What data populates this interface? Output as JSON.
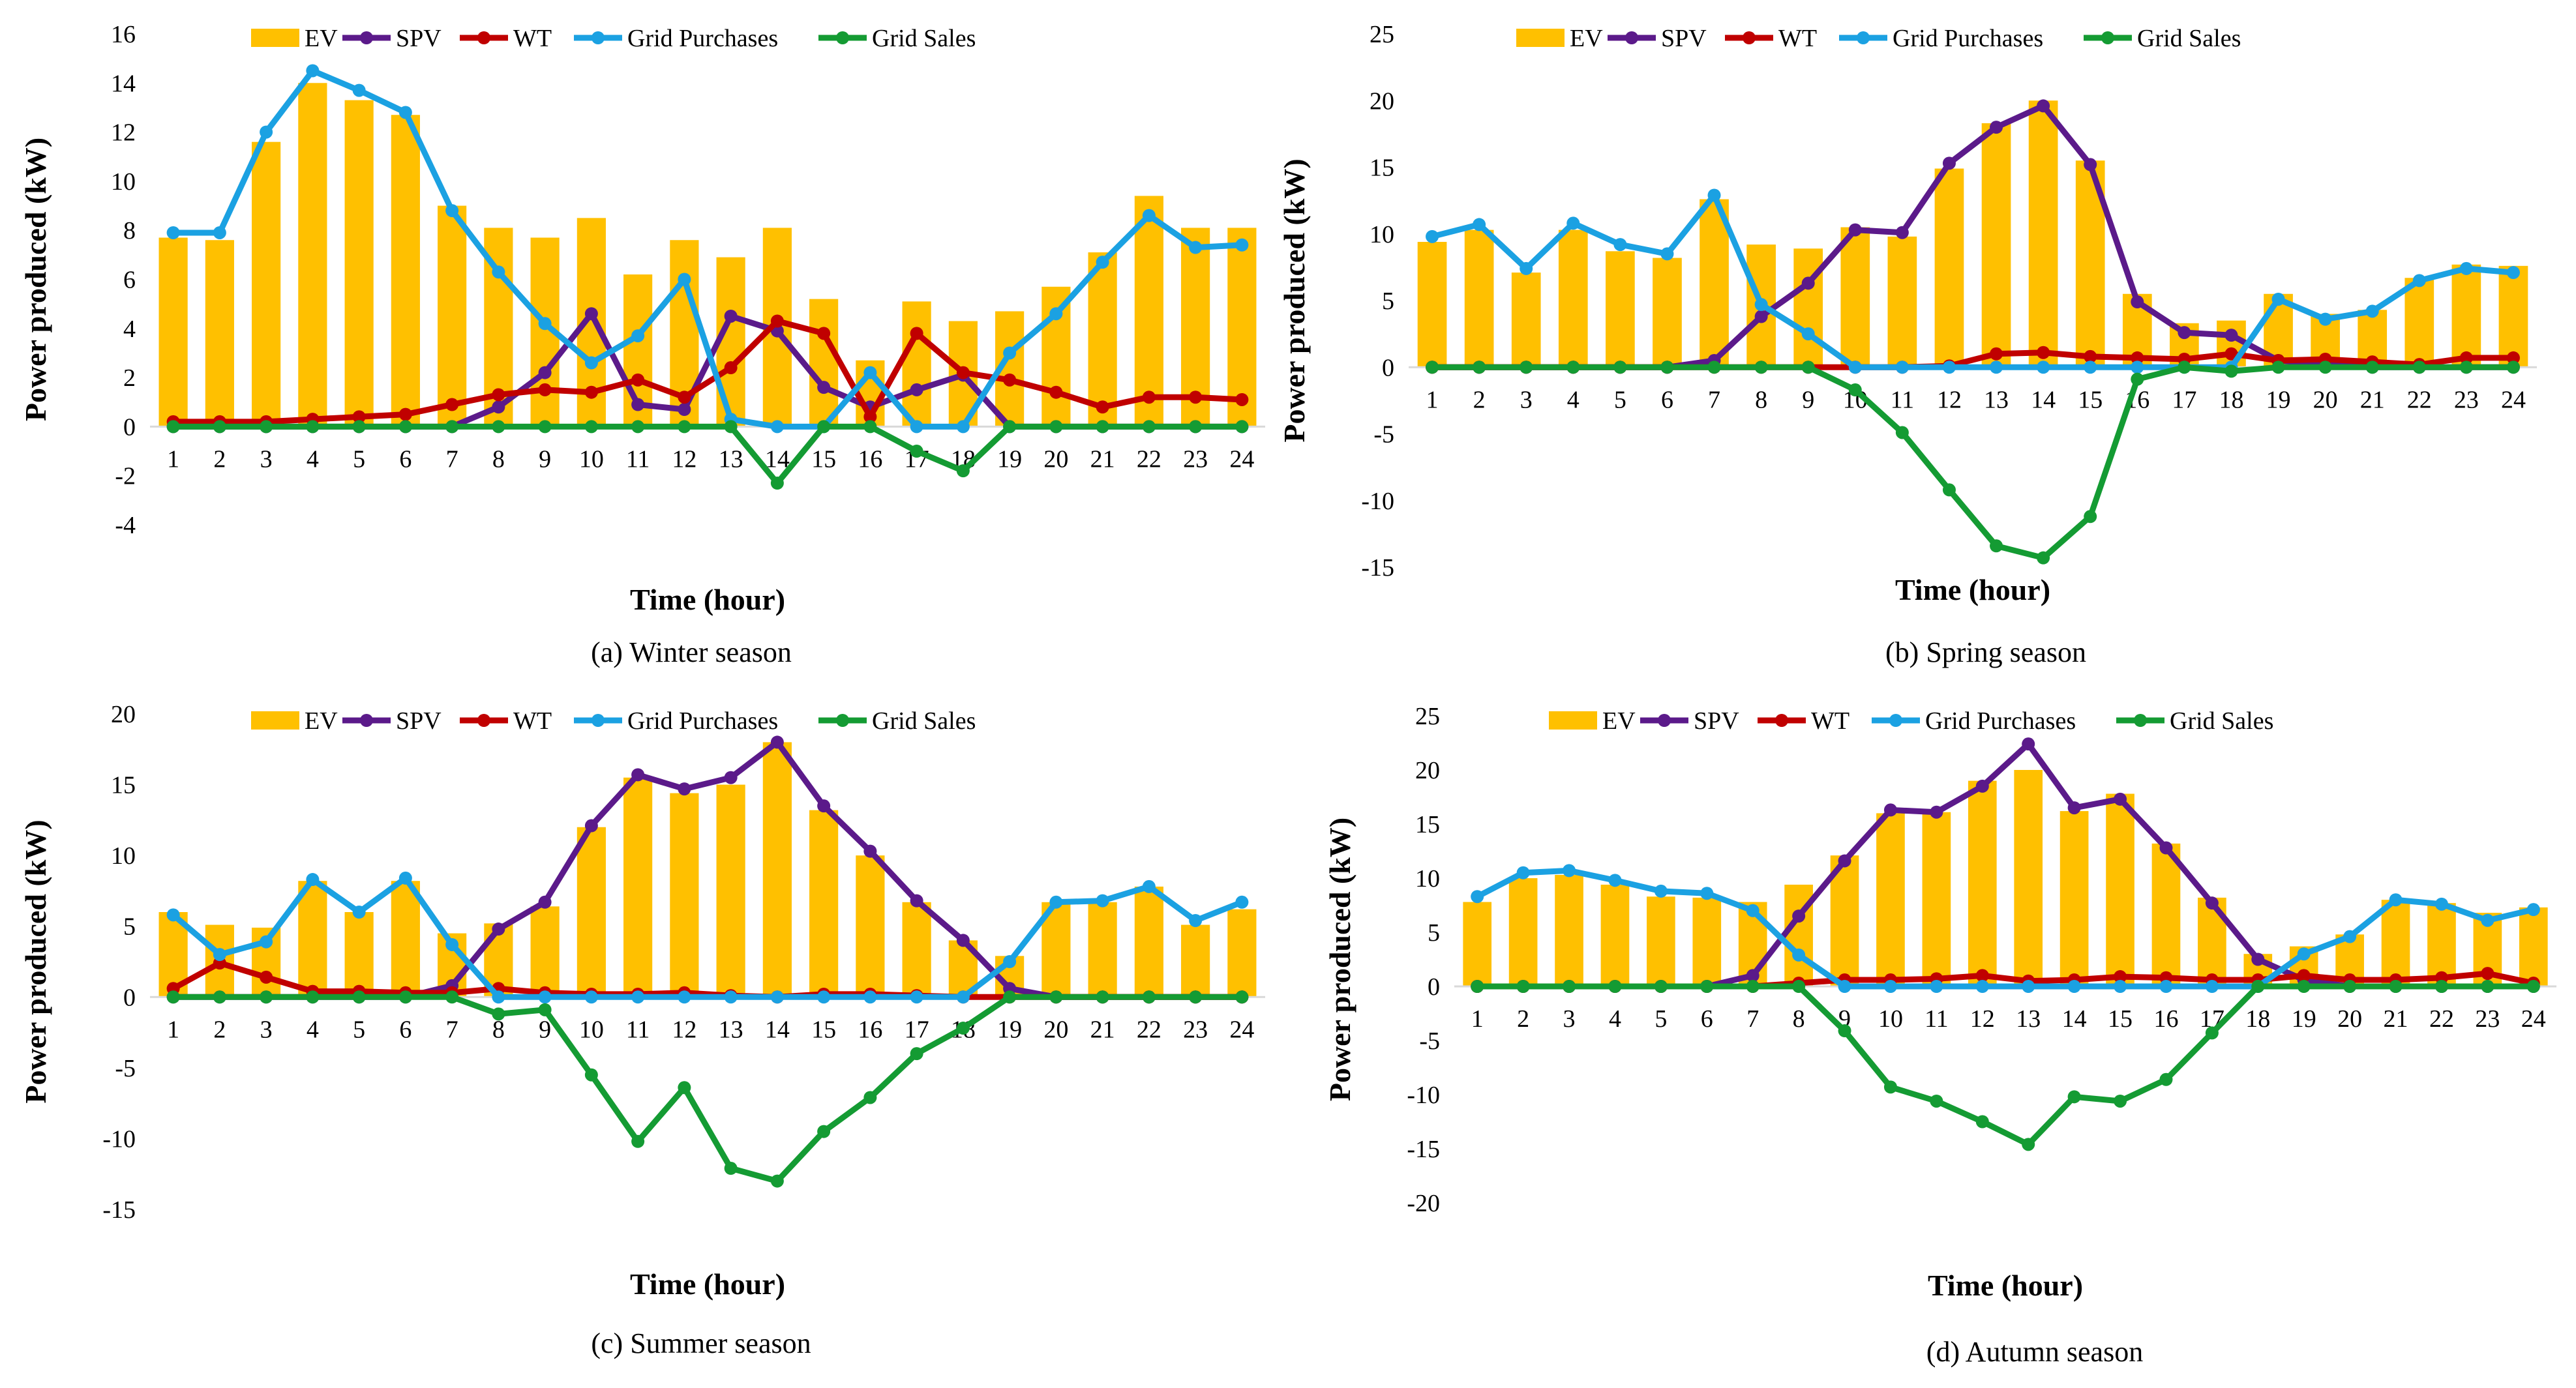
{
  "colors": {
    "ev": "#FFC000",
    "spv": "#5B1A8A",
    "wt": "#C00000",
    "grid_purchases": "#1BA1E2",
    "grid_sales": "#149B33"
  },
  "chart_data": [
    {
      "id": "winter",
      "type": "bar+line",
      "caption": "(a) Winter season",
      "xlabel": "Time (hour)",
      "ylabel": "Power produced (kW)",
      "ylim": [
        -4,
        16
      ],
      "yticks": [
        -4,
        -2,
        0,
        2,
        4,
        6,
        8,
        10,
        12,
        14,
        16
      ],
      "categories": [
        "1",
        "2",
        "3",
        "4",
        "5",
        "6",
        "7",
        "8",
        "9",
        "10",
        "11",
        "12",
        "13",
        "14",
        "15",
        "16",
        "17",
        "18",
        "19",
        "20",
        "21",
        "22",
        "23",
        "24"
      ],
      "legend": [
        "EV",
        "SPV",
        "WT",
        "Grid Purchases",
        "Grid Sales"
      ],
      "series": [
        {
          "name": "EV",
          "kind": "bar",
          "values": [
            7.7,
            7.6,
            11.6,
            14.0,
            13.3,
            12.7,
            9.0,
            8.1,
            7.7,
            8.5,
            6.2,
            7.6,
            6.9,
            8.1,
            5.2,
            2.7,
            5.1,
            4.3,
            4.7,
            5.7,
            7.1,
            9.4,
            8.1,
            8.1
          ]
        },
        {
          "name": "SPV",
          "kind": "line",
          "values": [
            0,
            0,
            0,
            0,
            0,
            0,
            0,
            0.8,
            2.2,
            4.6,
            0.9,
            0.7,
            4.5,
            3.9,
            1.6,
            0.8,
            1.5,
            2.1,
            0,
            0,
            0,
            0,
            0,
            0
          ]
        },
        {
          "name": "WT",
          "kind": "line",
          "values": [
            0.2,
            0.2,
            0.2,
            0.3,
            0.4,
            0.5,
            0.9,
            1.3,
            1.5,
            1.4,
            1.9,
            1.2,
            2.4,
            4.3,
            3.8,
            0.4,
            3.8,
            2.2,
            1.9,
            1.4,
            0.8,
            1.2,
            1.2,
            1.1
          ]
        },
        {
          "name": "Grid Purchases",
          "kind": "line",
          "values": [
            7.9,
            7.9,
            12.0,
            14.5,
            13.7,
            12.8,
            8.8,
            6.3,
            4.2,
            2.6,
            3.7,
            6.0,
            0.3,
            0,
            0,
            2.2,
            0,
            0,
            3.0,
            4.6,
            6.7,
            8.6,
            7.3,
            7.4
          ]
        },
        {
          "name": "Grid Sales",
          "kind": "line",
          "values": [
            0,
            0,
            0,
            0,
            0,
            0,
            0,
            0,
            0,
            0,
            0,
            0,
            0,
            -2.3,
            0,
            0,
            -1.0,
            -1.8,
            0,
            0,
            0,
            0,
            0,
            0
          ]
        }
      ]
    },
    {
      "id": "spring",
      "type": "bar+line",
      "caption": "(b) Spring season",
      "xlabel": "Time (hour)",
      "ylabel": "Power produced (kW)",
      "ylim": [
        -15,
        25
      ],
      "yticks": [
        -15,
        -10,
        -5,
        0,
        5,
        10,
        15,
        20,
        25
      ],
      "categories": [
        "1",
        "2",
        "3",
        "4",
        "5",
        "6",
        "7",
        "8",
        "9",
        "10",
        "11",
        "12",
        "13",
        "14",
        "15",
        "16",
        "17",
        "18",
        "19",
        "20",
        "21",
        "22",
        "23",
        "24"
      ],
      "legend": [
        "EV",
        "SPV",
        "WT",
        "Grid Purchases",
        "Grid Sales"
      ],
      "series": [
        {
          "name": "EV",
          "kind": "bar",
          "values": [
            9.4,
            10.3,
            7.1,
            10.3,
            8.7,
            8.2,
            12.6,
            9.2,
            8.9,
            10.5,
            9.8,
            14.9,
            18.3,
            20.0,
            15.5,
            5.5,
            3.3,
            3.5,
            5.5,
            4.0,
            4.3,
            6.7,
            7.7,
            7.6
          ]
        },
        {
          "name": "SPV",
          "kind": "line",
          "values": [
            0,
            0,
            0,
            0,
            0,
            0,
            0.5,
            3.8,
            6.3,
            10.3,
            10.1,
            15.3,
            18.0,
            19.6,
            15.2,
            4.9,
            2.6,
            2.4,
            0.5,
            0.2,
            0,
            0,
            0,
            0
          ]
        },
        {
          "name": "WT",
          "kind": "line",
          "values": [
            0,
            0,
            0,
            0,
            0,
            0,
            0,
            0,
            0,
            0,
            0,
            0.1,
            1.0,
            1.1,
            0.8,
            0.7,
            0.6,
            1.0,
            0.5,
            0.6,
            0.4,
            0.2,
            0.7,
            0.7
          ]
        },
        {
          "name": "Grid Purchases",
          "kind": "line",
          "values": [
            9.8,
            10.7,
            7.4,
            10.8,
            9.2,
            8.5,
            12.9,
            4.7,
            2.5,
            0,
            0,
            0,
            0,
            0,
            0,
            0,
            0,
            0,
            5.1,
            3.6,
            4.2,
            6.5,
            7.4,
            7.1
          ]
        },
        {
          "name": "Grid Sales",
          "kind": "line",
          "values": [
            0,
            0,
            0,
            0,
            0,
            0,
            0,
            0,
            0,
            -1.7,
            -4.9,
            -9.2,
            -13.4,
            -14.3,
            -11.2,
            -0.9,
            0,
            -0.3,
            0,
            0,
            0,
            0,
            0,
            0
          ]
        }
      ]
    },
    {
      "id": "summer",
      "type": "bar+line",
      "caption": "(c) Summer season",
      "xlabel": "Time (hour)",
      "ylabel": "Power produced (kW)",
      "ylim": [
        -15,
        20
      ],
      "yticks": [
        -15,
        -10,
        -5,
        0,
        5,
        10,
        15,
        20
      ],
      "categories": [
        "1",
        "2",
        "3",
        "4",
        "5",
        "6",
        "7",
        "8",
        "9",
        "10",
        "11",
        "12",
        "13",
        "14",
        "15",
        "16",
        "17",
        "18",
        "19",
        "20",
        "21",
        "22",
        "23",
        "24"
      ],
      "legend": [
        "EV",
        "SPV",
        "WT",
        "Grid Purchases",
        "Grid Sales"
      ],
      "series": [
        {
          "name": "EV",
          "kind": "bar",
          "values": [
            6.0,
            5.1,
            4.9,
            8.2,
            6.0,
            8.2,
            4.5,
            5.2,
            6.4,
            12.0,
            15.5,
            14.4,
            15.0,
            18.0,
            13.2,
            10.0,
            6.7,
            4.0,
            2.9,
            6.7,
            6.7,
            7.8,
            5.1,
            6.2
          ]
        },
        {
          "name": "SPV",
          "kind": "line",
          "values": [
            0,
            0,
            0,
            0,
            0,
            0,
            0.8,
            4.8,
            6.7,
            12.1,
            15.7,
            14.7,
            15.5,
            18.0,
            13.5,
            10.3,
            6.8,
            4.0,
            0.6,
            0,
            0,
            0,
            0,
            0
          ]
        },
        {
          "name": "WT",
          "kind": "line",
          "values": [
            0.6,
            2.4,
            1.4,
            0.4,
            0.4,
            0.3,
            0.3,
            0.6,
            0.3,
            0.2,
            0.2,
            0.3,
            0.1,
            0.0,
            0.2,
            0.2,
            0.1,
            0.0,
            0,
            0,
            0,
            0,
            0,
            0
          ]
        },
        {
          "name": "Grid Purchases",
          "kind": "line",
          "values": [
            5.8,
            3.0,
            3.9,
            8.3,
            6.0,
            8.4,
            3.7,
            0,
            0,
            0,
            0,
            0,
            0,
            0,
            0,
            0,
            0,
            0,
            2.5,
            6.7,
            6.8,
            7.8,
            5.4,
            6.7
          ]
        },
        {
          "name": "Grid Sales",
          "kind": "line",
          "values": [
            0,
            0,
            0,
            0,
            0,
            0,
            0,
            -1.2,
            -0.9,
            -5.5,
            -10.2,
            -6.4,
            -12.1,
            -13.0,
            -9.5,
            -7.1,
            -4.0,
            -2.2,
            0,
            0,
            0,
            0,
            0,
            0
          ]
        }
      ]
    },
    {
      "id": "autumn",
      "type": "bar+line",
      "caption": "(d) Autumn season",
      "xlabel": "Time (hour)",
      "ylabel": "Power produced (kW)",
      "ylim": [
        -20,
        25
      ],
      "yticks": [
        -20,
        -15,
        -10,
        -5,
        0,
        5,
        10,
        15,
        20,
        25
      ],
      "categories": [
        "1",
        "2",
        "3",
        "4",
        "5",
        "6",
        "7",
        "8",
        "9",
        "10",
        "11",
        "12",
        "13",
        "14",
        "15",
        "16",
        "17",
        "18",
        "19",
        "20",
        "21",
        "22",
        "23",
        "24"
      ],
      "legend": [
        "EV",
        "SPV",
        "WT",
        "Grid Purchases",
        "Grid Sales"
      ],
      "series": [
        {
          "name": "EV",
          "kind": "bar",
          "values": [
            7.8,
            10.0,
            10.3,
            9.4,
            8.3,
            8.2,
            7.8,
            9.4,
            12.1,
            16.0,
            16.1,
            19.0,
            20.0,
            16.2,
            17.8,
            13.2,
            8.2,
            3.0,
            3.7,
            4.8,
            8.0,
            7.7,
            6.8,
            7.3
          ]
        },
        {
          "name": "SPV",
          "kind": "line",
          "values": [
            0,
            0,
            0,
            0,
            0,
            0,
            1.0,
            6.5,
            11.6,
            16.3,
            16.1,
            18.5,
            22.4,
            16.5,
            17.3,
            12.8,
            7.7,
            2.5,
            0.6,
            0,
            0,
            0,
            0,
            0
          ]
        },
        {
          "name": "WT",
          "kind": "line",
          "values": [
            0,
            0,
            0,
            0,
            0,
            0,
            0,
            0.3,
            0.6,
            0.6,
            0.7,
            1.0,
            0.5,
            0.6,
            0.9,
            0.8,
            0.6,
            0.6,
            1.0,
            0.6,
            0.6,
            0.8,
            1.2,
            0.3
          ]
        },
        {
          "name": "Grid Purchases",
          "kind": "line",
          "values": [
            8.3,
            10.5,
            10.7,
            9.8,
            8.8,
            8.6,
            7.0,
            2.9,
            0,
            0,
            0,
            0,
            0,
            0,
            0,
            0,
            0,
            0,
            3.0,
            4.6,
            8.0,
            7.6,
            6.1,
            7.1
          ]
        },
        {
          "name": "Grid Sales",
          "kind": "line",
          "values": [
            0,
            0,
            0,
            0,
            0,
            0,
            0,
            0,
            -4.1,
            -9.3,
            -10.6,
            -12.5,
            -14.6,
            -10.2,
            -10.6,
            -8.6,
            -4.3,
            0,
            0,
            0,
            0,
            0,
            0,
            0
          ]
        }
      ]
    }
  ]
}
